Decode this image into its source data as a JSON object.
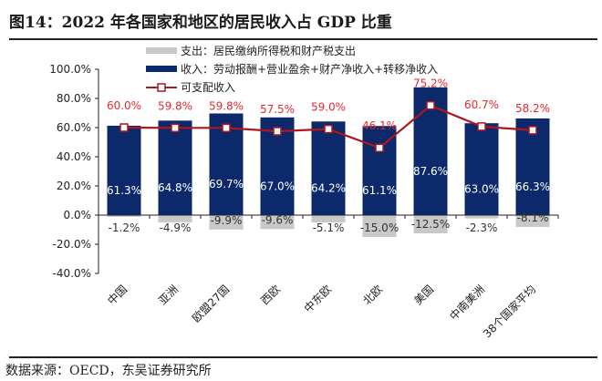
{
  "title": "图14：2022 年各国家和地区的居民收入占 GDP 比重",
  "source": "数据来源：OECD，东吴证券研究所",
  "chart_data": {
    "type": "bar",
    "categories": [
      "中国",
      "亚洲",
      "欧盟27国",
      "西欧",
      "中东欧",
      "北欧",
      "美国",
      "中南美洲",
      "38个国家平均"
    ],
    "series": [
      {
        "name": "支出：居民缴纳所得税和财产税支出",
        "kind": "bar",
        "color": "#c8c8c8",
        "values": [
          -1.2,
          -4.9,
          -9.9,
          -9.6,
          -5.1,
          -15.0,
          -12.5,
          -2.3,
          -8.1
        ],
        "labels": [
          "-1.2%",
          "-4.9%",
          "-9.9%",
          "-9.6%",
          "-5.1%",
          "-15.0%",
          "-12.5%",
          "-2.3%",
          "-8.1%"
        ]
      },
      {
        "name": "收入：劳动报酬+营业盈余+财产净收入+转移净收入",
        "kind": "bar",
        "color": "#0c2a6b",
        "values": [
          61.3,
          64.8,
          69.7,
          67.0,
          64.2,
          61.1,
          87.6,
          63.0,
          66.3
        ],
        "labels": [
          "61.3%",
          "64.8%",
          "69.7%",
          "67.0%",
          "64.2%",
          "61.1%",
          "87.6%",
          "63.0%",
          "66.3%"
        ]
      },
      {
        "name": "可支配收入",
        "kind": "line",
        "color": "#b0161c",
        "values": [
          60.0,
          59.8,
          59.8,
          57.5,
          59.0,
          46.1,
          75.2,
          60.7,
          58.2
        ],
        "labels": [
          "60.0%",
          "59.8%",
          "59.8%",
          "57.5%",
          "59.0%",
          "46.1%",
          "75.2%",
          "60.7%",
          "58.2%"
        ]
      }
    ],
    "ylim": [
      -40,
      100
    ],
    "yticks": [
      "-40.0%",
      "-20.0%",
      "0.0%",
      "20.0%",
      "40.0%",
      "60.0%",
      "80.0%",
      "100.0%"
    ],
    "ytick_values": [
      -40,
      -20,
      0,
      20,
      40,
      60,
      80,
      100
    ],
    "grid": false,
    "legend": "top-center"
  }
}
